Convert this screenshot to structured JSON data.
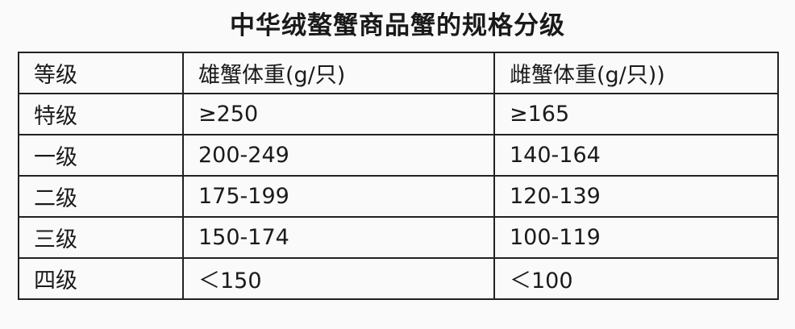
{
  "title": "中华绒螯蟹商品蟹的规格分级",
  "table": {
    "headers": [
      "等级",
      "雄蟹体重(g/只)",
      "雌蟹体重(g/只))"
    ],
    "rows": [
      [
        "特级",
        "≥250",
        "≥165"
      ],
      [
        "一级",
        "200-249",
        "140-164"
      ],
      [
        "二级",
        "175-199",
        "120-139"
      ],
      [
        "三级",
        "150-174",
        "100-119"
      ],
      [
        "四级",
        "＜150",
        "＜100"
      ]
    ]
  }
}
